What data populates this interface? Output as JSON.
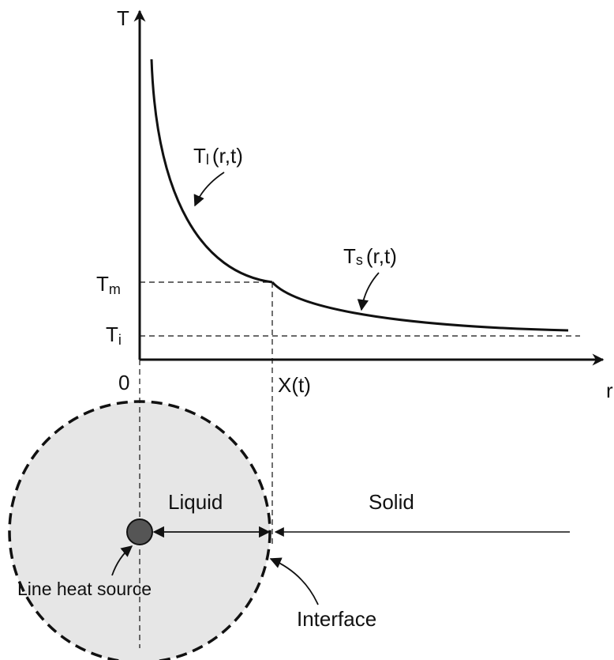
{
  "axes": {
    "y_label": "T",
    "x_label": "r",
    "origin": "0"
  },
  "marks": {
    "melting": {
      "base": "T",
      "sub": "m"
    },
    "initial": {
      "base": "T",
      "sub": "i"
    },
    "interface_position": "X(t)"
  },
  "curves": {
    "liquid": {
      "base": "T",
      "sub": "l",
      "args": "(r,t)"
    },
    "solid": {
      "base": "T",
      "sub": "s",
      "args": "(r,t)"
    }
  },
  "regions": {
    "liquid": "Liquid",
    "solid": "Solid"
  },
  "callouts": {
    "source": "Line heat source",
    "interface": "Interface"
  }
}
